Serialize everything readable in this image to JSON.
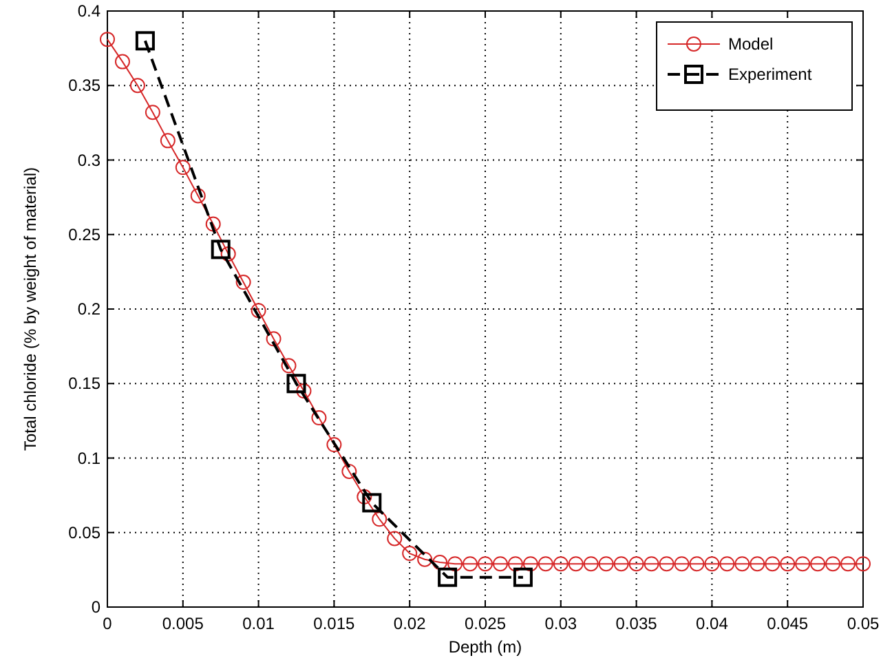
{
  "chart_data": {
    "type": "line",
    "xlabel": "Depth (m)",
    "ylabel": "Total chloride (% by weight of material)",
    "xlim": [
      0,
      0.05
    ],
    "ylim": [
      0,
      0.4
    ],
    "xticks": [
      0,
      0.005,
      0.01,
      0.015,
      0.02,
      0.025,
      0.03,
      0.035,
      0.04,
      0.045,
      0.05
    ],
    "yticks": [
      0,
      0.05,
      0.1,
      0.15,
      0.2,
      0.25,
      0.3,
      0.35,
      0.4
    ],
    "grid": true,
    "legend": "top right",
    "series": [
      {
        "name": "Model",
        "color": "#d62728",
        "marker": "circle",
        "line_style": "solid",
        "x": [
          0,
          0.001,
          0.002,
          0.003,
          0.004,
          0.005,
          0.006,
          0.007,
          0.008,
          0.009,
          0.01,
          0.011,
          0.012,
          0.013,
          0.014,
          0.015,
          0.016,
          0.017,
          0.018,
          0.019,
          0.02,
          0.021,
          0.022,
          0.023,
          0.024,
          0.025,
          0.026,
          0.027,
          0.028,
          0.029,
          0.03,
          0.031,
          0.032,
          0.033,
          0.034,
          0.035,
          0.036,
          0.037,
          0.038,
          0.039,
          0.04,
          0.041,
          0.042,
          0.043,
          0.044,
          0.045,
          0.046,
          0.047,
          0.048,
          0.049,
          0.05
        ],
        "values": [
          0.381,
          0.366,
          0.35,
          0.332,
          0.313,
          0.295,
          0.276,
          0.257,
          0.237,
          0.218,
          0.199,
          0.18,
          0.162,
          0.145,
          0.127,
          0.109,
          0.091,
          0.074,
          0.059,
          0.046,
          0.036,
          0.032,
          0.03,
          0.029,
          0.029,
          0.029,
          0.029,
          0.029,
          0.029,
          0.029,
          0.029,
          0.029,
          0.029,
          0.029,
          0.029,
          0.029,
          0.029,
          0.029,
          0.029,
          0.029,
          0.029,
          0.029,
          0.029,
          0.029,
          0.029,
          0.029,
          0.029,
          0.029,
          0.029,
          0.029,
          0.029
        ]
      },
      {
        "name": "Experiment",
        "color": "#000000",
        "marker": "square",
        "line_style": "dashed",
        "x": [
          0.0025,
          0.0075,
          0.0125,
          0.0175,
          0.0225,
          0.0275
        ],
        "values": [
          0.38,
          0.24,
          0.15,
          0.07,
          0.02,
          0.02
        ]
      }
    ]
  }
}
